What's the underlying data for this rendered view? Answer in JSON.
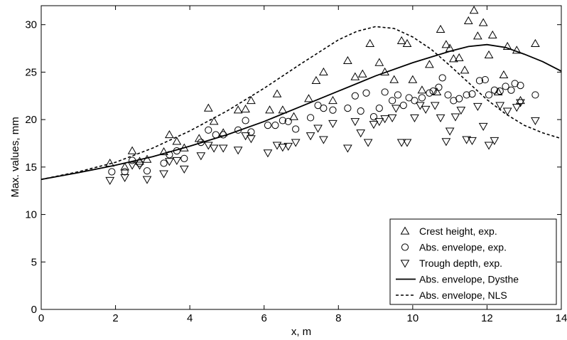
{
  "chart_data": {
    "type": "scatter",
    "xlabel": "x, m",
    "ylabel": "Max. values,  mm",
    "xlim": [
      0,
      14
    ],
    "ylim": [
      0,
      32
    ],
    "xticks": [
      0,
      2,
      4,
      6,
      8,
      10,
      12,
      14
    ],
    "yticks": [
      0,
      5,
      10,
      15,
      20,
      25,
      30
    ],
    "grid": false,
    "legend_position": "bottom-right",
    "series": [
      {
        "name": "Crest height, exp.",
        "kind": "scatter",
        "marker": "triangle-up",
        "points": [
          [
            1.85,
            15.4
          ],
          [
            2.25,
            15.0
          ],
          [
            2.45,
            16.7
          ],
          [
            2.65,
            15.6
          ],
          [
            2.85,
            15.8
          ],
          [
            3.3,
            16.6
          ],
          [
            3.45,
            18.4
          ],
          [
            3.65,
            17.7
          ],
          [
            3.85,
            17.0
          ],
          [
            4.25,
            18.0
          ],
          [
            4.5,
            21.2
          ],
          [
            4.65,
            19.8
          ],
          [
            4.9,
            18.6
          ],
          [
            5.3,
            21.0
          ],
          [
            5.5,
            21.1
          ],
          [
            5.65,
            22.0
          ],
          [
            6.15,
            21.0
          ],
          [
            6.35,
            22.7
          ],
          [
            6.5,
            21.0
          ],
          [
            6.8,
            20.3
          ],
          [
            7.2,
            22.2
          ],
          [
            7.4,
            24.1
          ],
          [
            7.6,
            25.0
          ],
          [
            7.85,
            22.0
          ],
          [
            8.25,
            26.2
          ],
          [
            8.45,
            24.5
          ],
          [
            8.65,
            24.8
          ],
          [
            8.85,
            28.0
          ],
          [
            9.1,
            26.0
          ],
          [
            9.25,
            25.0
          ],
          [
            9.5,
            24.2
          ],
          [
            9.7,
            28.3
          ],
          [
            9.85,
            28.0
          ],
          [
            10.0,
            24.2
          ],
          [
            10.25,
            23.1
          ],
          [
            10.45,
            25.8
          ],
          [
            10.65,
            22.9
          ],
          [
            10.75,
            29.5
          ],
          [
            10.9,
            27.9
          ],
          [
            11.0,
            27.5
          ],
          [
            11.1,
            26.4
          ],
          [
            11.25,
            26.5
          ],
          [
            11.4,
            25.2
          ],
          [
            11.5,
            30.4
          ],
          [
            11.65,
            31.5
          ],
          [
            11.75,
            28.8
          ],
          [
            11.9,
            30.2
          ],
          [
            12.05,
            26.8
          ],
          [
            12.15,
            28.9
          ],
          [
            12.3,
            22.9
          ],
          [
            12.45,
            24.7
          ],
          [
            12.55,
            27.7
          ],
          [
            12.8,
            27.3
          ],
          [
            12.9,
            22.0
          ],
          [
            13.3,
            28.0
          ]
        ]
      },
      {
        "name": "Abs. envelope, exp.",
        "kind": "scatter",
        "marker": "circle",
        "points": [
          [
            1.9,
            14.5
          ],
          [
            2.25,
            14.5
          ],
          [
            2.45,
            15.7
          ],
          [
            2.65,
            15.4
          ],
          [
            2.85,
            14.6
          ],
          [
            3.3,
            15.4
          ],
          [
            3.45,
            16.3
          ],
          [
            3.65,
            16.7
          ],
          [
            3.85,
            15.9
          ],
          [
            4.3,
            17.6
          ],
          [
            4.5,
            18.9
          ],
          [
            4.7,
            18.4
          ],
          [
            4.9,
            18.4
          ],
          [
            5.3,
            18.9
          ],
          [
            5.5,
            19.9
          ],
          [
            5.65,
            18.7
          ],
          [
            6.1,
            19.4
          ],
          [
            6.3,
            19.4
          ],
          [
            6.5,
            19.9
          ],
          [
            6.65,
            19.8
          ],
          [
            6.85,
            19.0
          ],
          [
            7.25,
            20.2
          ],
          [
            7.45,
            21.5
          ],
          [
            7.6,
            21.2
          ],
          [
            7.85,
            21.0
          ],
          [
            8.25,
            21.2
          ],
          [
            8.45,
            22.5
          ],
          [
            8.6,
            20.9
          ],
          [
            8.75,
            22.8
          ],
          [
            8.95,
            20.3
          ],
          [
            9.1,
            21.2
          ],
          [
            9.25,
            22.9
          ],
          [
            9.45,
            22.0
          ],
          [
            9.6,
            22.6
          ],
          [
            9.75,
            21.5
          ],
          [
            9.9,
            22.3
          ],
          [
            10.05,
            22.0
          ],
          [
            10.25,
            22.3
          ],
          [
            10.45,
            22.8
          ],
          [
            10.55,
            23.0
          ],
          [
            10.7,
            23.4
          ],
          [
            10.8,
            24.4
          ],
          [
            10.95,
            22.6
          ],
          [
            11.1,
            22.0
          ],
          [
            11.25,
            22.2
          ],
          [
            11.45,
            22.6
          ],
          [
            11.6,
            22.7
          ],
          [
            11.8,
            24.1
          ],
          [
            11.95,
            24.2
          ],
          [
            12.05,
            22.6
          ],
          [
            12.2,
            23.1
          ],
          [
            12.35,
            23.0
          ],
          [
            12.5,
            23.5
          ],
          [
            12.65,
            23.1
          ],
          [
            12.75,
            23.8
          ],
          [
            12.9,
            23.6
          ],
          [
            13.3,
            22.6
          ]
        ]
      },
      {
        "name": "Trough depth, exp.",
        "kind": "scatter",
        "marker": "triangle-down",
        "points": [
          [
            1.85,
            13.6
          ],
          [
            2.25,
            13.9
          ],
          [
            2.45,
            15.2
          ],
          [
            2.65,
            15.2
          ],
          [
            2.85,
            13.7
          ],
          [
            3.3,
            14.3
          ],
          [
            3.45,
            15.6
          ],
          [
            3.65,
            15.7
          ],
          [
            3.85,
            14.8
          ],
          [
            4.3,
            16.2
          ],
          [
            4.5,
            17.3
          ],
          [
            4.65,
            17.0
          ],
          [
            4.9,
            17.0
          ],
          [
            5.3,
            16.8
          ],
          [
            5.5,
            18.3
          ],
          [
            5.65,
            18.0
          ],
          [
            6.1,
            16.5
          ],
          [
            6.35,
            17.3
          ],
          [
            6.5,
            17.1
          ],
          [
            6.65,
            17.2
          ],
          [
            6.85,
            17.6
          ],
          [
            7.25,
            18.3
          ],
          [
            7.45,
            19.1
          ],
          [
            7.6,
            17.9
          ],
          [
            7.85,
            19.6
          ],
          [
            8.25,
            17.0
          ],
          [
            8.45,
            19.8
          ],
          [
            8.6,
            18.6
          ],
          [
            8.8,
            17.6
          ],
          [
            8.95,
            19.5
          ],
          [
            9.1,
            19.8
          ],
          [
            9.25,
            20.1
          ],
          [
            9.45,
            20.2
          ],
          [
            9.55,
            21.2
          ],
          [
            9.7,
            17.6
          ],
          [
            9.85,
            17.6
          ],
          [
            10.05,
            20.2
          ],
          [
            10.2,
            21.5
          ],
          [
            10.35,
            21.1
          ],
          [
            10.6,
            21.5
          ],
          [
            10.75,
            20.2
          ],
          [
            10.9,
            17.7
          ],
          [
            11.0,
            18.8
          ],
          [
            11.15,
            20.3
          ],
          [
            11.3,
            21.0
          ],
          [
            11.45,
            17.9
          ],
          [
            11.6,
            17.8
          ],
          [
            11.75,
            21.4
          ],
          [
            11.9,
            19.3
          ],
          [
            12.05,
            17.3
          ],
          [
            12.2,
            17.8
          ],
          [
            12.35,
            21.5
          ],
          [
            12.55,
            20.9
          ],
          [
            12.8,
            21.3
          ],
          [
            12.9,
            21.8
          ],
          [
            13.3,
            19.9
          ]
        ]
      },
      {
        "name": "Abs. envelope, Dysthe",
        "kind": "line",
        "dash": "solid",
        "points": [
          [
            0,
            13.7
          ],
          [
            1,
            14.4
          ],
          [
            2,
            15.2
          ],
          [
            3,
            16.1
          ],
          [
            4,
            17.2
          ],
          [
            5,
            18.4
          ],
          [
            6,
            19.8
          ],
          [
            7,
            21.4
          ],
          [
            8,
            23.0
          ],
          [
            9,
            24.6
          ],
          [
            10,
            26.0
          ],
          [
            11,
            27.2
          ],
          [
            11.5,
            27.7
          ],
          [
            12,
            27.9
          ],
          [
            12.5,
            27.6
          ],
          [
            13,
            26.9
          ],
          [
            13.5,
            26.1
          ],
          [
            14,
            25.1
          ]
        ]
      },
      {
        "name": "Abs. envelope, NLS",
        "kind": "line",
        "dash": "dashed",
        "points": [
          [
            0,
            13.7
          ],
          [
            1,
            14.5
          ],
          [
            2,
            15.5
          ],
          [
            3,
            17.0
          ],
          [
            4,
            18.8
          ],
          [
            5,
            20.9
          ],
          [
            6,
            23.3
          ],
          [
            7,
            25.9
          ],
          [
            8,
            28.4
          ],
          [
            8.5,
            29.3
          ],
          [
            9,
            29.8
          ],
          [
            9.5,
            29.6
          ],
          [
            10,
            28.7
          ],
          [
            10.5,
            27.4
          ],
          [
            11,
            25.7
          ],
          [
            11.5,
            23.9
          ],
          [
            12,
            22.1
          ],
          [
            12.5,
            20.6
          ],
          [
            13,
            19.4
          ],
          [
            13.5,
            18.6
          ],
          [
            14,
            18.0
          ]
        ]
      }
    ]
  }
}
